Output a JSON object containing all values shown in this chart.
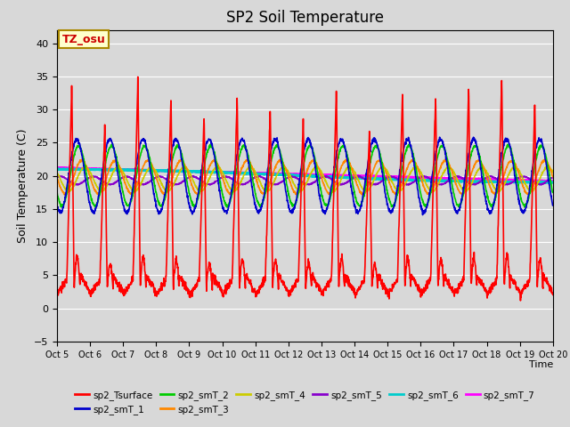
{
  "title": "SP2 Soil Temperature",
  "xlabel": "Time",
  "ylabel": "Soil Temperature (C)",
  "annotation": "TZ_osu",
  "annotation_color": "#cc0000",
  "annotation_bg": "#ffffcc",
  "annotation_border": "#aa8800",
  "ylim": [
    -5,
    42
  ],
  "yticks": [
    -5,
    0,
    5,
    10,
    15,
    20,
    25,
    30,
    35,
    40
  ],
  "n_days": 15,
  "background_color": "#d8d8d8",
  "series": {
    "sp2_Tsurface": {
      "color": "#ff0000",
      "lw": 1.2
    },
    "sp2_smT_1": {
      "color": "#0000cc",
      "lw": 1.2
    },
    "sp2_smT_2": {
      "color": "#00cc00",
      "lw": 1.2
    },
    "sp2_smT_3": {
      "color": "#ff8800",
      "lw": 1.2
    },
    "sp2_smT_4": {
      "color": "#cccc00",
      "lw": 1.2
    },
    "sp2_smT_5": {
      "color": "#8800cc",
      "lw": 1.2
    },
    "sp2_smT_6": {
      "color": "#00cccc",
      "lw": 2.0
    },
    "sp2_smT_7": {
      "color": "#ff00ff",
      "lw": 2.0
    }
  },
  "xtick_labels": [
    "Oct 5",
    "Oct 6",
    "Oct 7",
    "Oct 8",
    "Oct 9",
    "Oct 10",
    "Oct 11",
    "Oct 12",
    "Oct 13",
    "Oct 14",
    "Oct 15",
    "Oct 16",
    "Oct 17",
    "Oct 18",
    "Oct 19",
    "Oct 20"
  ],
  "grid_color": "#ffffff",
  "title_fontsize": 12,
  "axis_label_fontsize": 9,
  "tick_fontsize": 8
}
